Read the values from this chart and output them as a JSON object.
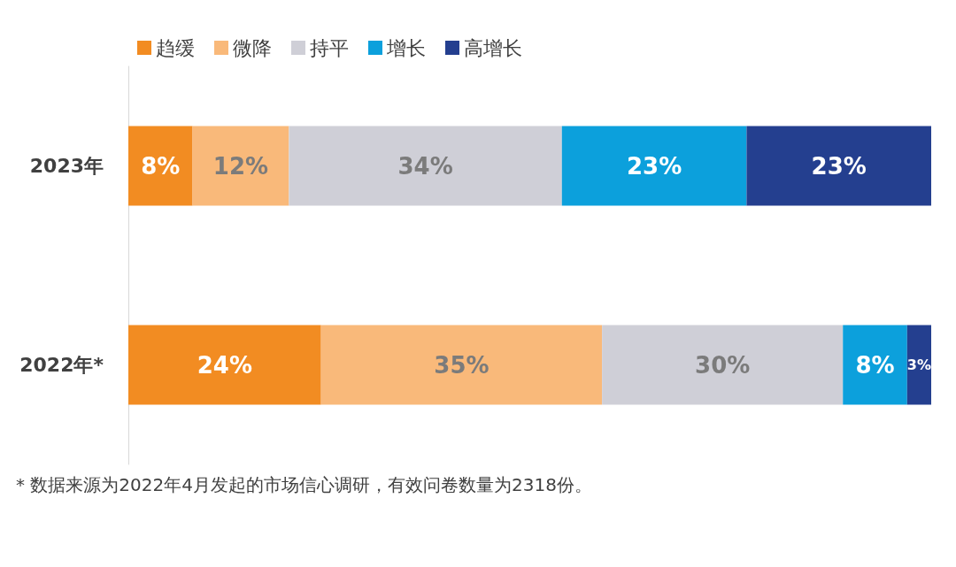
{
  "chart_data": {
    "type": "bar",
    "orientation": "horizontal",
    "stacked": true,
    "legend": "top left",
    "categories": [
      "2023年",
      "2022年*"
    ],
    "series": [
      {
        "name": "趋缓",
        "color": "#f28c22",
        "values": [
          8,
          24
        ],
        "value_labels": [
          "8%",
          "24%"
        ]
      },
      {
        "name": "微降",
        "color": "#f9b97a",
        "values": [
          12,
          35
        ],
        "value_labels": [
          "12%",
          "35%"
        ]
      },
      {
        "name": "持平",
        "color": "#cfcfd7",
        "values": [
          34,
          30
        ],
        "value_labels": [
          "34%",
          "30%"
        ]
      },
      {
        "name": "增长",
        "color": "#0ca0dc",
        "values": [
          23,
          8
        ],
        "value_labels": [
          "23%",
          "8%"
        ]
      },
      {
        "name": "高增长",
        "color": "#243f8f",
        "values": [
          23,
          3
        ],
        "value_labels": [
          "23%",
          "3%"
        ]
      }
    ],
    "annotations": [
      "* 数据来源为2022年4月发起的市场信心调研，有效问卷数量为2318份。"
    ]
  }
}
